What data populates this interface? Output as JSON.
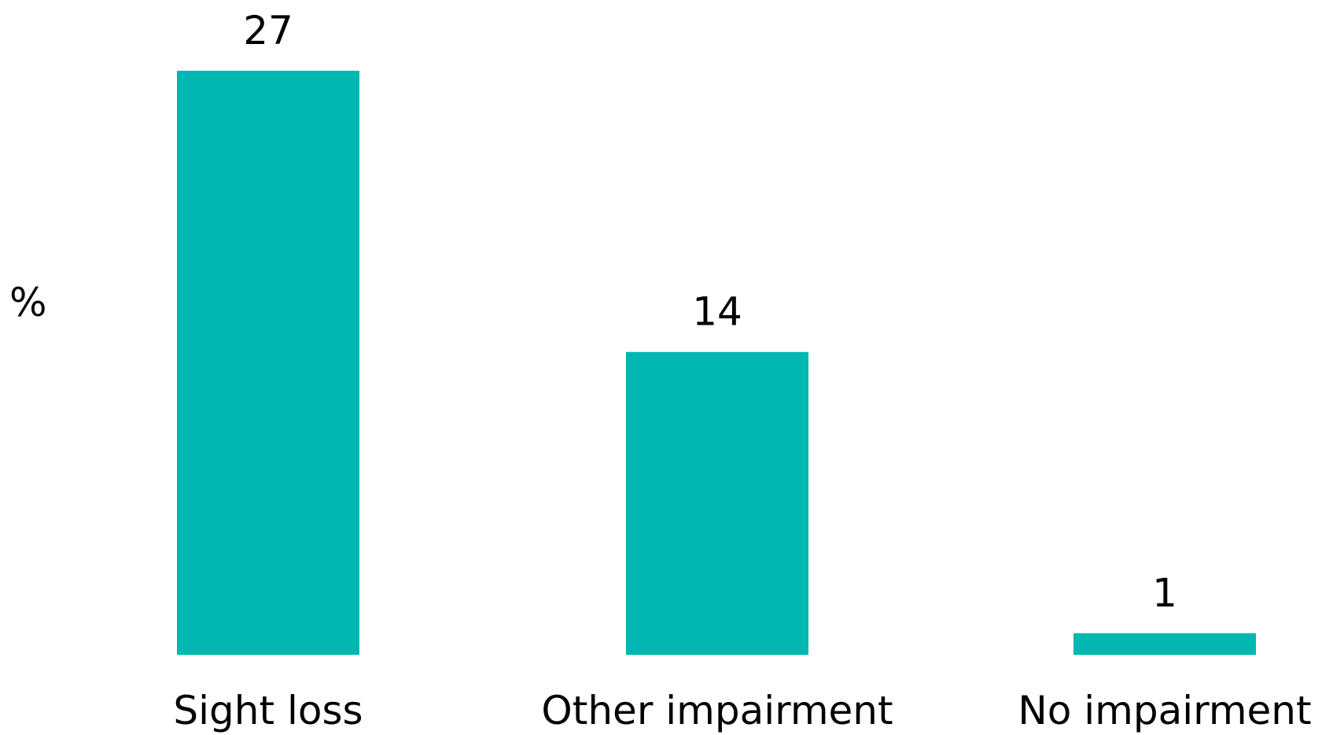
{
  "chart_data": {
    "type": "bar",
    "categories": [
      "Sight loss",
      "Other impairment",
      "No impairment"
    ],
    "values": [
      27,
      14,
      1
    ],
    "value_labels": [
      "27",
      "14",
      "1"
    ],
    "title": "",
    "xlabel": "",
    "ylabel": "%",
    "ylim": [
      0,
      27
    ],
    "grid": false,
    "legend": "none",
    "bar_color": "#00B7B2"
  }
}
